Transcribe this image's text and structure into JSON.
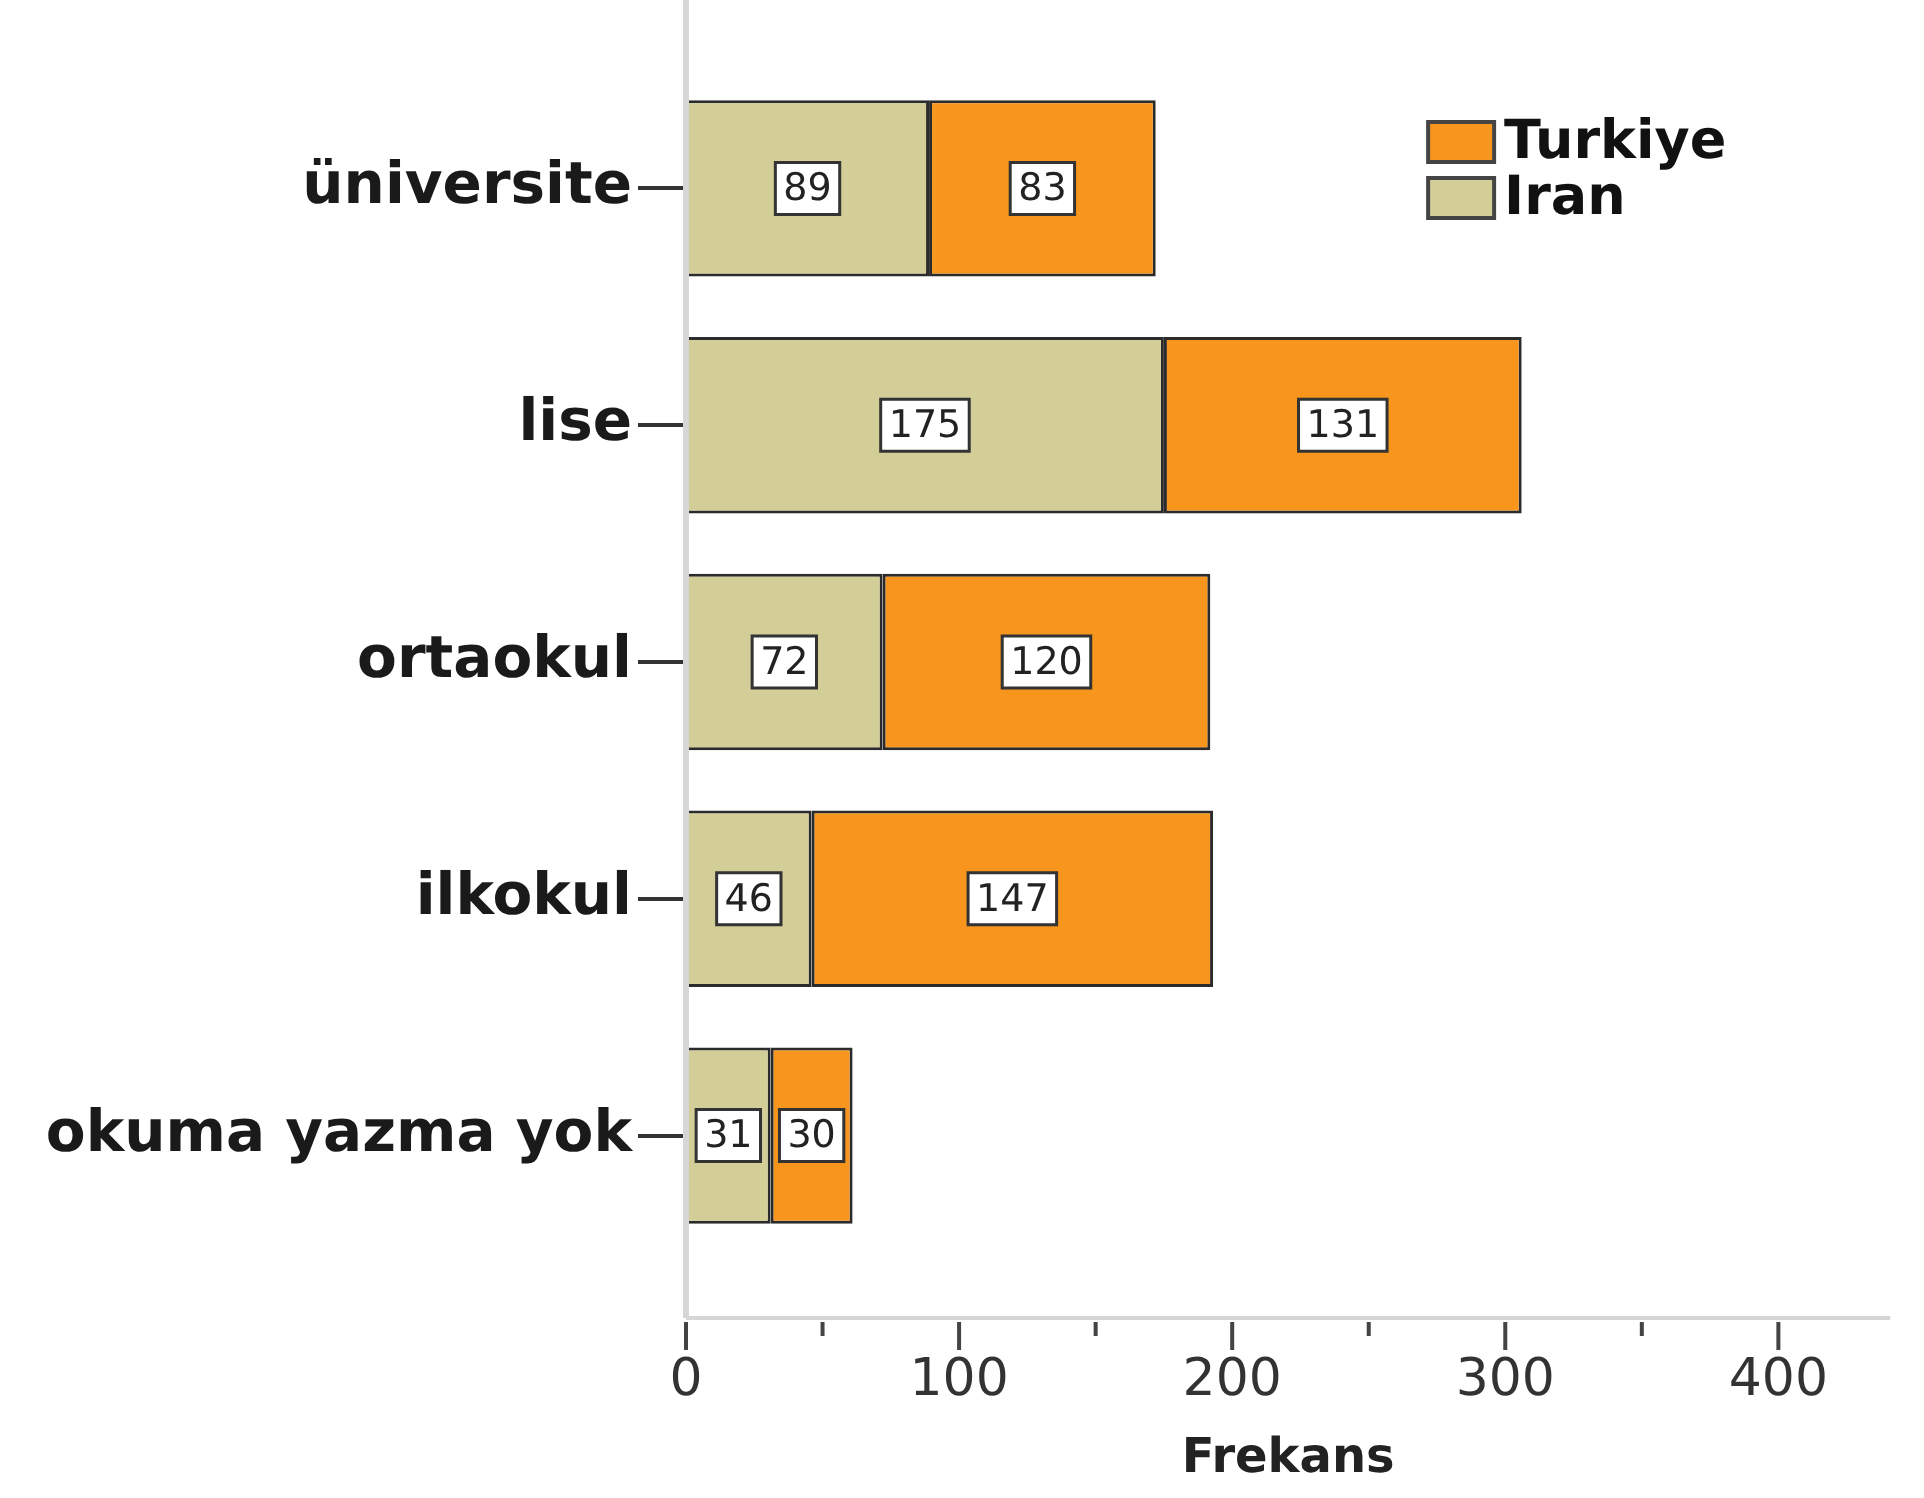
{
  "chart_data": {
    "type": "bar",
    "orientation": "horizontal",
    "stacked": true,
    "categories": [
      "üniversite",
      "lise",
      "ortaokul",
      "ilkokul",
      "okuma yazma yok"
    ],
    "series": [
      {
        "name": "Iran",
        "color": "#d3ce97",
        "values": [
          89,
          175,
          72,
          46,
          31
        ]
      },
      {
        "name": "Turkiye",
        "color": "#f7951d",
        "values": [
          83,
          131,
          120,
          147,
          30
        ]
      }
    ],
    "xlabel": "Frekans",
    "xlim": [
      0,
      441
    ],
    "xticks": [
      0,
      {
        "value": 50,
        "label": null
      },
      100,
      {
        "value": 150,
        "label": null
      },
      200,
      {
        "value": 250,
        "label": null
      },
      300,
      {
        "value": 350,
        "label": null
      },
      400
    ],
    "legend": "top right",
    "data_labels": true
  }
}
